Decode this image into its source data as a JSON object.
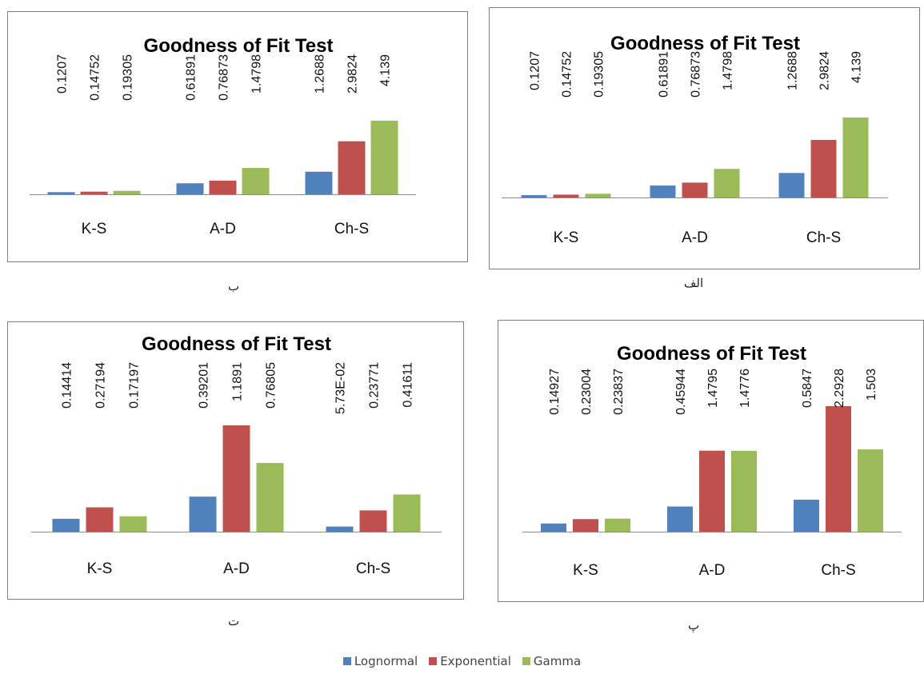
{
  "captions": [
    "ب",
    "الف",
    "ت",
    "پ"
  ],
  "legend": [
    {
      "name": "Lognormal",
      "color": "#4f81bd"
    },
    {
      "name": "Exponential",
      "color": "#c0504d"
    },
    {
      "name": "Gamma",
      "color": "#9bbb59"
    }
  ],
  "chart_data": [
    {
      "type": "bar",
      "title": "Goodness of  Fit Test",
      "categories": [
        "K-S",
        "A-D",
        "Ch-S"
      ],
      "series": [
        {
          "name": "Lognormal",
          "values": [
            0.1207,
            0.61891,
            1.2688
          ],
          "labels": [
            "0.1207",
            "0.61891",
            "1.2688"
          ]
        },
        {
          "name": "Exponential",
          "values": [
            0.14752,
            0.76873,
            2.9824
          ],
          "labels": [
            "0.14752",
            "0.76873",
            "2.9824"
          ]
        },
        {
          "name": "Gamma",
          "values": [
            0.19305,
            1.4798,
            4.139
          ],
          "labels": [
            "0.19305",
            "1.4798",
            "4.139"
          ]
        }
      ],
      "ylim": [
        0,
        4.139
      ]
    },
    {
      "type": "bar",
      "title": "Goodness of  Fit Test",
      "categories": [
        "K-S",
        "A-D",
        "Ch-S"
      ],
      "series": [
        {
          "name": "Lognormal",
          "values": [
            0.1207,
            0.61891,
            1.2688
          ],
          "labels": [
            "0.1207",
            "0.61891",
            "1.2688"
          ]
        },
        {
          "name": "Exponential",
          "values": [
            0.14752,
            0.76873,
            2.9824
          ],
          "labels": [
            "0.14752",
            "0.76873",
            "2.9824"
          ]
        },
        {
          "name": "Gamma",
          "values": [
            0.19305,
            1.4798,
            4.139
          ],
          "labels": [
            "0.19305",
            "1.4798",
            "4.139"
          ]
        }
      ],
      "ylim": [
        0,
        4.139
      ]
    },
    {
      "type": "bar",
      "title": "Goodness of  Fit Test",
      "categories": [
        "K-S",
        "A-D",
        "Ch-S"
      ],
      "series": [
        {
          "name": "Lognormal",
          "values": [
            0.14414,
            0.39201,
            0.0573
          ],
          "labels": [
            "0.14414",
            "0.39201",
            "5.73E-02"
          ]
        },
        {
          "name": "Exponential",
          "values": [
            0.27194,
            1.1891,
            0.23771
          ],
          "labels": [
            "0.27194",
            "1.1891",
            "0.23771"
          ]
        },
        {
          "name": "Gamma",
          "values": [
            0.17197,
            0.76805,
            0.41611
          ],
          "labels": [
            "0.17197",
            "0.76805",
            "0.41611"
          ]
        }
      ],
      "ylim": [
        0,
        1.1891
      ]
    },
    {
      "type": "bar",
      "title": "Goodness of  Fit Test",
      "categories": [
        "K-S",
        "A-D",
        "Ch-S"
      ],
      "series": [
        {
          "name": "Lognormal",
          "values": [
            0.14927,
            0.45944,
            0.5847
          ],
          "labels": [
            "0.14927",
            "0.45944",
            "0.5847"
          ]
        },
        {
          "name": "Exponential",
          "values": [
            0.23004,
            1.4795,
            2.2928
          ],
          "labels": [
            "0.23004",
            "1.4795",
            "2.2928"
          ]
        },
        {
          "name": "Gamma",
          "values": [
            0.23837,
            1.4776,
            1.503
          ],
          "labels": [
            "0.23837",
            "1.4776",
            "1.503"
          ]
        }
      ],
      "ylim": [
        0,
        2.2928
      ]
    }
  ]
}
